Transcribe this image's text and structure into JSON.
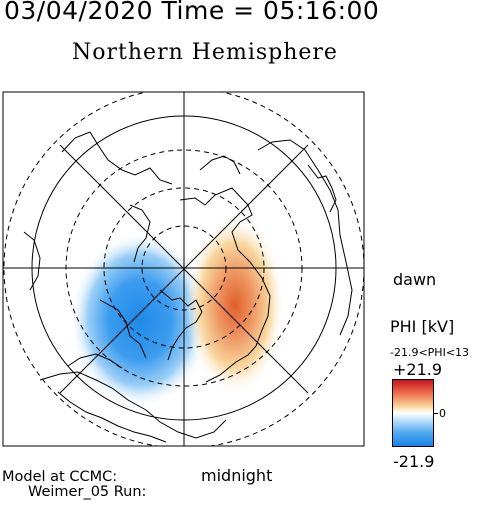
{
  "header": {
    "date_time": "03/04/2020 Time = 05:16:00"
  },
  "title": "Northern Hemisphere",
  "labels": {
    "dawn": "dawn",
    "midnight": "midnight"
  },
  "footer": {
    "model": "Model at CCMC:",
    "run": "Weimer_05 Run:"
  },
  "colorbar": {
    "title": "PHI [kV]",
    "range_label": "-21.9<PHI<13",
    "max_label": "+21.9",
    "zero_label": "0",
    "min_label": "-21.9",
    "colors": {
      "max": "#c8141e",
      "zero": "#ffffff",
      "min": "#1882e6"
    }
  },
  "map": {
    "projection": "polar stereographic, north pole centered",
    "potential_units": "kV",
    "features": [
      "coastlines",
      "latitude-circles-dashed",
      "meridians",
      "clock-circle",
      "potential-cells"
    ]
  }
}
